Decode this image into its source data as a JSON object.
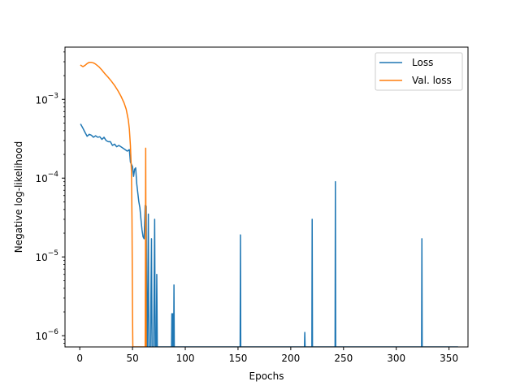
{
  "chart_data": {
    "type": "line",
    "title": "",
    "xlabel": "Epochs",
    "ylabel": "Negative log-likelihood",
    "yscale": "log",
    "xlim": [
      -14,
      368
    ],
    "ylim": [
      7.2e-07,
      0.0046
    ],
    "xticks": [
      0,
      50,
      100,
      150,
      200,
      250,
      300,
      350
    ],
    "xtick_labels": [
      "0",
      "50",
      "100",
      "150",
      "200",
      "250",
      "300",
      "350"
    ],
    "yticks": [
      1e-06,
      1e-05,
      0.0001,
      0.001
    ],
    "ytick_labels": [
      {
        "base": "10",
        "exp": "−6"
      },
      {
        "base": "10",
        "exp": "−5"
      },
      {
        "base": "10",
        "exp": "−4"
      },
      {
        "base": "10",
        "exp": "−3"
      }
    ],
    "grid": false,
    "legend_position": "top-right",
    "series": [
      {
        "name": "Loss",
        "color": "#1f77b4",
        "points": [
          [
            1,
            0.00048
          ],
          [
            3,
            0.00043
          ],
          [
            5,
            0.00038
          ],
          [
            7,
            0.00034
          ],
          [
            9,
            0.00036
          ],
          [
            11,
            0.00035
          ],
          [
            13,
            0.00033
          ],
          [
            15,
            0.000345
          ],
          [
            17,
            0.00033
          ],
          [
            19,
            0.000335
          ],
          [
            21,
            0.00031
          ],
          [
            23,
            0.00033
          ],
          [
            25,
            0.0003
          ],
          [
            27,
            0.00029
          ],
          [
            29,
            0.00029
          ],
          [
            31,
            0.00026
          ],
          [
            33,
            0.00027
          ],
          [
            35,
            0.00025
          ],
          [
            37,
            0.00026
          ],
          [
            39,
            0.00025
          ],
          [
            41,
            0.00024
          ],
          [
            43,
            0.00023
          ],
          [
            45,
            0.00022
          ],
          [
            47,
            0.00023
          ],
          [
            48,
            0.00016
          ],
          [
            50,
            0.00014
          ],
          [
            51,
            0.000105
          ],
          [
            52,
            0.00013
          ],
          [
            53,
            0.000135
          ],
          [
            54,
            8.5e-05
          ],
          [
            55,
            6.5e-05
          ],
          [
            56,
            5e-05
          ],
          [
            57,
            4.2e-05
          ],
          [
            58,
            3e-05
          ],
          [
            59,
            2.2e-05
          ],
          [
            60,
            1.8e-05
          ],
          [
            61,
            1.7e-05
          ],
          [
            62,
            4.5e-05
          ],
          [
            63,
            4.4e-05
          ],
          [
            63.4,
            7.2e-07
          ],
          [
            64,
            7.2e-07
          ],
          [
            65,
            3.5e-05
          ],
          [
            65.5,
            7.2e-07
          ],
          [
            67,
            7.2e-07
          ],
          [
            68,
            1.7e-05
          ],
          [
            68.5,
            7.2e-07
          ],
          [
            70,
            7.2e-07
          ],
          [
            71,
            3e-05
          ],
          [
            71.5,
            7.2e-07
          ],
          [
            72.5,
            7.2e-07
          ],
          [
            73,
            6e-06
          ],
          [
            73.5,
            7.2e-07
          ],
          [
            87,
            7.2e-07
          ],
          [
            87.3,
            1.9e-06
          ],
          [
            87.6,
            7.2e-07
          ],
          [
            88,
            7.2e-07
          ],
          [
            88.3,
            1.9e-06
          ],
          [
            88.6,
            7.2e-07
          ],
          [
            89,
            7.2e-07
          ],
          [
            89.3,
            4.4e-06
          ],
          [
            89.6,
            7.2e-07
          ],
          [
            152,
            7.2e-07
          ],
          [
            152.3,
            1.9e-05
          ],
          [
            152.6,
            7.2e-07
          ],
          [
            213,
            7.2e-07
          ],
          [
            213.3,
            1.1e-06
          ],
          [
            213.6,
            7.2e-07
          ],
          [
            220,
            7.2e-07
          ],
          [
            220.3,
            3e-05
          ],
          [
            220.6,
            7.2e-07
          ],
          [
            242,
            7.2e-07
          ],
          [
            242.3,
            9e-05
          ],
          [
            242.6,
            7.2e-07
          ],
          [
            324,
            7.2e-07
          ],
          [
            324.3,
            1.7e-05
          ],
          [
            324.6,
            7.2e-07
          ],
          [
            358,
            7.2e-07
          ]
        ]
      },
      {
        "name": "Val. loss",
        "color": "#ff7f0e",
        "points": [
          [
            1,
            0.0027
          ],
          [
            3,
            0.0026
          ],
          [
            5,
            0.0027
          ],
          [
            7,
            0.00285
          ],
          [
            9,
            0.00295
          ],
          [
            11,
            0.00295
          ],
          [
            13,
            0.0029
          ],
          [
            15,
            0.0028
          ],
          [
            18,
            0.0026
          ],
          [
            21,
            0.00235
          ],
          [
            24,
            0.0021
          ],
          [
            27,
            0.0019
          ],
          [
            30,
            0.0017
          ],
          [
            33,
            0.0015
          ],
          [
            36,
            0.0013
          ],
          [
            39,
            0.0011
          ],
          [
            42,
            0.0009
          ],
          [
            44,
            0.00075
          ],
          [
            46,
            0.00055
          ],
          [
            47,
            0.00042
          ],
          [
            48,
            0.00026
          ],
          [
            49,
            0.00012
          ],
          [
            49.5,
            3e-05
          ],
          [
            50,
            2e-06
          ],
          [
            50.3,
            7.2e-07
          ],
          [
            62,
            7.2e-07
          ],
          [
            62.5,
            0.00024
          ],
          [
            63,
            7.2e-07
          ]
        ]
      }
    ]
  }
}
